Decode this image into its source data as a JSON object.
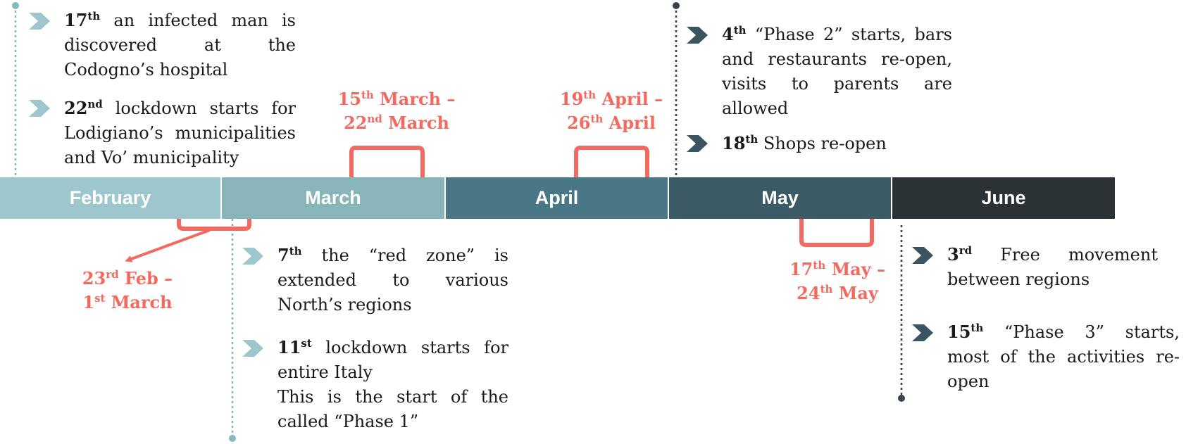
{
  "colors": {
    "accent": "#f26a5f",
    "february": "#9dc7cc",
    "march": "#88b5ba",
    "april": "#4a7786",
    "may": "#3b5a66",
    "june": "#2b3236",
    "chevron_light": "#9dc7cc",
    "chevron_dark": "#3b5560",
    "connector_light": "#86b8bd",
    "connector_dark": "#3a4448"
  },
  "months": [
    "February",
    "March",
    "April",
    "May",
    "June"
  ],
  "ranges": {
    "feb_mar": {
      "start_day": "23",
      "start_suffix": "rd",
      "start_month": "Feb",
      "end_day": "1",
      "end_suffix": "st",
      "end_month": "March"
    },
    "mar": {
      "start_day": "15",
      "start_suffix": "th",
      "start_month": "March",
      "end_day": "22",
      "end_suffix": "nd",
      "end_month": "March"
    },
    "apr": {
      "start_day": "19",
      "start_suffix": "th",
      "start_month": "April",
      "end_day": "26",
      "end_suffix": "th",
      "end_month": "April"
    },
    "may": {
      "start_day": "17",
      "start_suffix": "th",
      "start_month": "May",
      "end_day": "24",
      "end_suffix": "th",
      "end_month": "May"
    }
  },
  "events": {
    "february": [
      {
        "day": "17",
        "suffix": "th",
        "text": "an infected man is discovered at the Codogno’s hospital"
      },
      {
        "day": "22",
        "suffix": "nd",
        "text": "lockdown starts for Lodigiano’s municipalities and Vo’ municipality"
      }
    ],
    "march": [
      {
        "day": "7",
        "suffix": "th",
        "text": "the “red zone” is extended to various North’s regions"
      },
      {
        "day": "11",
        "suffix": "st",
        "text": "lockdown starts for entire Italy",
        "note": "This is the start of the called “Phase 1”"
      }
    ],
    "may": [
      {
        "day": "4",
        "suffix": "th",
        "text": "“Phase 2” starts, bars and restaurants re-open, visits to parents are allowed"
      },
      {
        "day": "18",
        "suffix": "th",
        "text": "Shops re-open"
      }
    ],
    "june": [
      {
        "day": "3",
        "suffix": "rd",
        "text": "Free movement between regions"
      },
      {
        "day": "15",
        "suffix": "th",
        "text": "“Phase 3” starts, most of the activities re-open"
      }
    ]
  }
}
